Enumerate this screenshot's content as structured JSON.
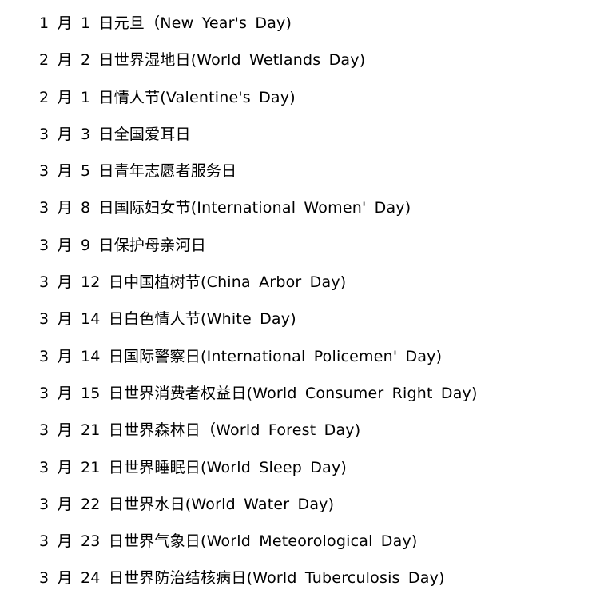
{
  "document": {
    "entries": [
      "1 月 1 日元旦（New Year's Day)",
      "2 月 2 日世界湿地日(World Wetlands Day)",
      "2 月 1 日情人节(Valentine's Day)",
      "3 月 3 日全国爱耳日",
      "3 月 5 日青年志愿者服务日",
      "3 月 8 日国际妇女节(International Women' Day)",
      "3 月 9 日保护母亲河日",
      "3 月 12 日中国植树节(China Arbor Day)",
      "3 月 14 日白色情人节(White Day)",
      "3 月 14 日国际警察日(International Policemen' Day)",
      "3 月 15 日世界消费者权益日(World Consumer Right Day)",
      "3 月 21 日世界森林日（World Forest Day)",
      "3 月 21 日世界睡眠日(World Sleep Day)",
      "3 月 22 日世界水日(World Water Day)",
      "3 月 23 日世界气象日(World Meteorological Day)",
      "3 月 24 日世界防治结核病日(World Tuberculosis Day)"
    ]
  }
}
